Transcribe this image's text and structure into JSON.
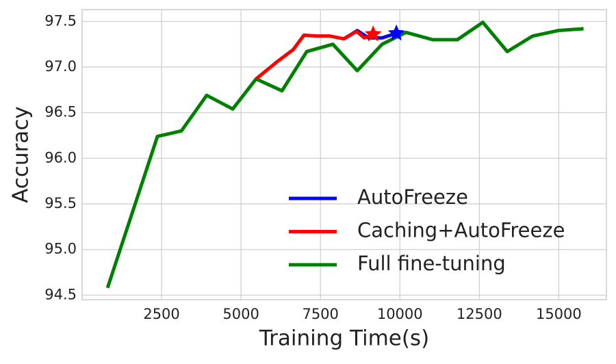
{
  "chart_data": {
    "type": "line",
    "xlabel": "Training Time(s)",
    "ylabel": "Accuracy",
    "xlim": [
      0,
      16500
    ],
    "ylim": [
      94.45,
      97.63
    ],
    "xticks": [
      2500,
      5000,
      7500,
      10000,
      12500,
      15000
    ],
    "yticks": [
      94.5,
      {
        "value": 95,
        "label": "95.0"
      },
      95.5,
      {
        "value": 96,
        "label": "96.0"
      },
      96.5,
      {
        "value": 97,
        "label": "97.0"
      },
      97.5
    ],
    "grid": true,
    "legend": "lower right",
    "end_marker": "star",
    "series": [
      {
        "name": "AutoFreeze",
        "color": "#0000ff",
        "x": [
          8250,
          8660,
          9010,
          9440,
          9890
        ],
        "values": [
          97.31,
          97.4,
          97.32,
          97.32,
          97.37
        ]
      },
      {
        "name": "Caching+AutoFreeze",
        "color": "#ff0000",
        "x": [
          5475,
          6140,
          6640,
          6980,
          7370,
          7800,
          8230,
          8640,
          8880,
          9160
        ],
        "values": [
          96.87,
          97.06,
          97.19,
          97.35,
          97.34,
          97.34,
          97.31,
          97.39,
          97.32,
          97.36
        ]
      },
      {
        "name": "Full fine-tuning",
        "color": "#008000",
        "x": [
          800,
          2370,
          3125,
          3920,
          4740,
          5475,
          6290,
          7070,
          7890,
          8660,
          9440,
          10190,
          11030,
          11810,
          12610,
          13380,
          14180,
          14980,
          15780
        ],
        "values": [
          94.58,
          96.24,
          96.3,
          96.69,
          96.54,
          96.87,
          96.74,
          97.17,
          97.25,
          96.96,
          97.25,
          97.38,
          97.3,
          97.3,
          97.49,
          97.17,
          97.34,
          97.4,
          97.42
        ]
      }
    ]
  }
}
